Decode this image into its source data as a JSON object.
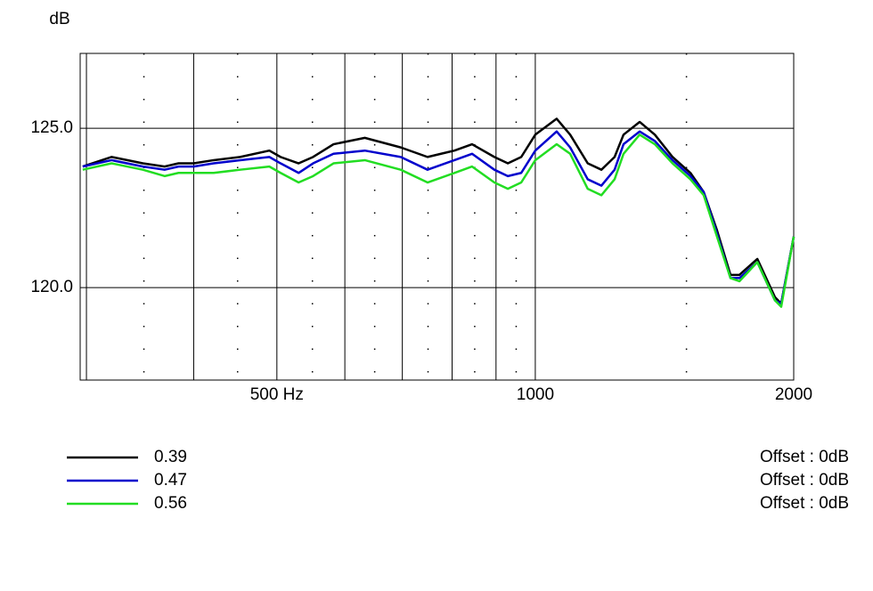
{
  "chart_data": {
    "type": "line",
    "y_label": "dB",
    "x_scale": "log",
    "xlim": [
      295,
      2000
    ],
    "ylim": [
      117.1,
      127.35
    ],
    "xticks": [
      {
        "value": 500,
        "label": "500 Hz"
      },
      1000,
      2000
    ],
    "xgrid": [
      300,
      400,
      500,
      600,
      700,
      800,
      900,
      1000,
      2000
    ],
    "xminor": [
      350,
      450,
      550,
      650,
      750,
      850,
      950,
      1500
    ],
    "yticks": [
      {
        "value": 120,
        "label": "120.0"
      },
      {
        "value": 125,
        "label": "125.0"
      }
    ],
    "grid": true,
    "x": [
      297,
      321,
      349,
      370,
      384,
      400,
      422,
      453,
      490,
      505,
      530,
      551,
      582,
      633,
      697,
      749,
      805,
      844,
      896,
      929,
      963,
      1000,
      1059,
      1098,
      1151,
      1194,
      1237,
      1267,
      1323,
      1378,
      1445,
      1516,
      1571,
      1628,
      1688,
      1729,
      1814,
      1902,
      1934,
      2000
    ],
    "series": [
      {
        "name": "0.39",
        "color": "#000000",
        "offset": "Offset : 0dB",
        "values": [
          123.8,
          124.1,
          123.9,
          123.8,
          123.9,
          123.9,
          124.0,
          124.1,
          124.3,
          124.1,
          123.9,
          124.1,
          124.5,
          124.7,
          124.4,
          124.1,
          124.3,
          124.5,
          124.1,
          123.9,
          124.1,
          124.8,
          125.3,
          124.8,
          123.9,
          123.7,
          124.1,
          124.8,
          125.2,
          124.8,
          124.1,
          123.6,
          123.0,
          121.8,
          120.4,
          120.4,
          120.9,
          119.7,
          119.5,
          121.6
        ]
      },
      {
        "name": "0.47",
        "color": "#0000cc",
        "offset": "Offset : 0dB",
        "values": [
          123.8,
          124.0,
          123.8,
          123.7,
          123.8,
          123.8,
          123.9,
          124.0,
          124.1,
          123.9,
          123.6,
          123.9,
          124.2,
          124.3,
          124.1,
          123.7,
          124.0,
          124.2,
          123.7,
          123.5,
          123.6,
          124.3,
          124.9,
          124.4,
          123.4,
          123.2,
          123.7,
          124.5,
          124.9,
          124.6,
          124.0,
          123.5,
          123.0,
          121.7,
          120.3,
          120.3,
          120.8,
          119.6,
          119.5,
          121.6
        ]
      },
      {
        "name": "0.56",
        "color": "#22dd22",
        "offset": "Offset : 0dB",
        "values": [
          123.7,
          123.9,
          123.7,
          123.5,
          123.6,
          123.6,
          123.6,
          123.7,
          123.8,
          123.6,
          123.3,
          123.5,
          123.9,
          124.0,
          123.7,
          123.3,
          123.6,
          123.8,
          123.3,
          123.1,
          123.3,
          124.0,
          124.5,
          124.2,
          123.1,
          122.9,
          123.4,
          124.2,
          124.8,
          124.5,
          123.9,
          123.4,
          122.9,
          121.6,
          120.3,
          120.2,
          120.8,
          119.6,
          119.4,
          121.6
        ]
      }
    ]
  }
}
